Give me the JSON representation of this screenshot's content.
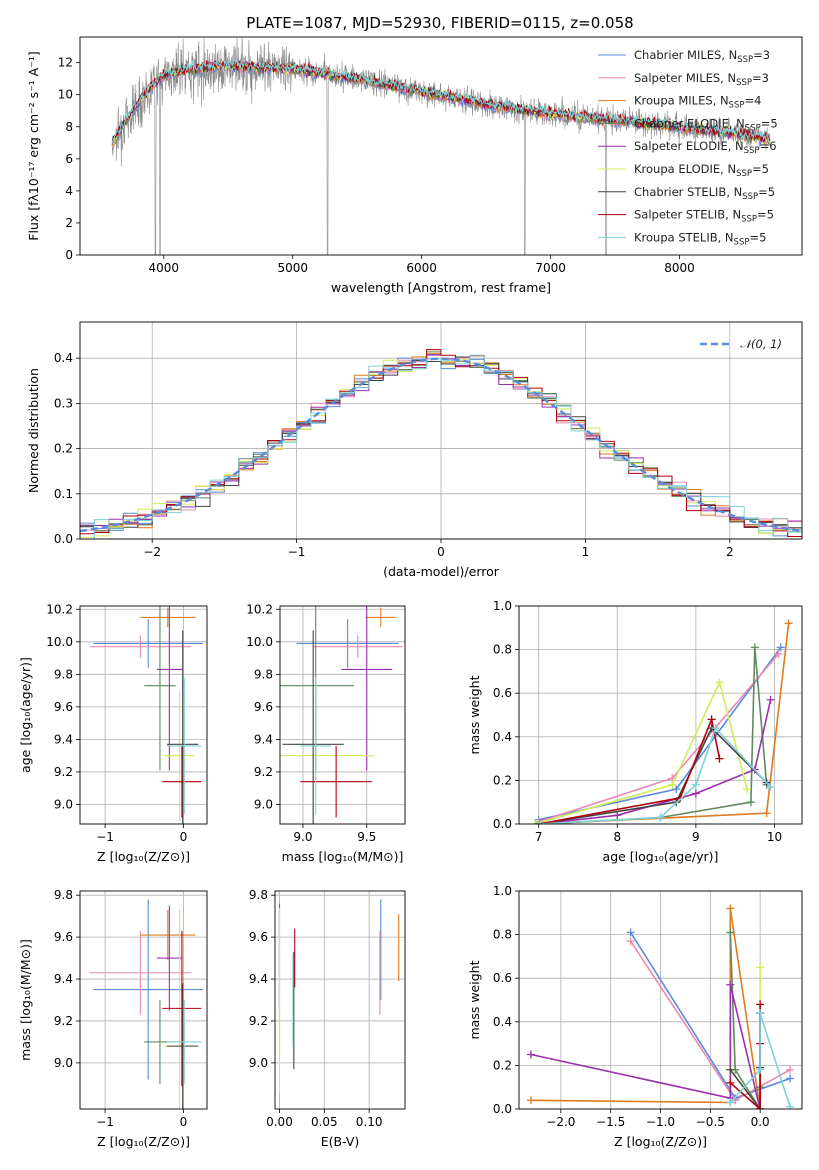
{
  "colors": {
    "chabrier_miles": "#5b8bd9",
    "salpeter_miles": "#e888b5",
    "kroupa_miles": "#e07a1f",
    "chabrier_elodie": "#5e8a5e",
    "salpeter_elodie": "#9b30b0",
    "kroupa_elodie": "#cfee5a",
    "chabrier_stelib": "#444444",
    "salpeter_stelib": "#b00010",
    "kroupa_stelib": "#7fd2d8",
    "data_spectrum": "#8a8a8a",
    "normal_curve": "#5b8bd9"
  },
  "chart_data": [
    {
      "id": "spectrum",
      "type": "line",
      "title": "PLATE=1087, MJD=52930, FIBERID=0115, z=0.058",
      "xlabel": "wavelength [Angstrom, rest frame]",
      "ylabel": "Flux [fλ10⁻¹⁷ erg cm⁻² s⁻¹ A⁻¹]",
      "xlim": [
        3350,
        8950
      ],
      "ylim": [
        0,
        13.6
      ],
      "xticks": [
        4000,
        5000,
        6000,
        7000,
        8000
      ],
      "yticks": [
        0,
        2,
        4,
        6,
        8,
        10,
        12
      ],
      "grid": false,
      "legend_position": "top-right",
      "continuum": {
        "x": [
          3600,
          3700,
          3800,
          3900,
          4000,
          4200,
          4500,
          5000,
          5500,
          6000,
          6500,
          7000,
          7500,
          8000,
          8500,
          8700
        ],
        "y": [
          7.0,
          8.3,
          9.5,
          10.5,
          11.2,
          11.6,
          11.8,
          11.6,
          11.0,
          10.2,
          9.4,
          8.8,
          8.4,
          8.0,
          7.5,
          7.2
        ]
      },
      "legend": [
        {
          "label": "Chabrier MILES, N",
          "sub": "SSP",
          "suffix": "=3",
          "color_key": "chabrier_miles"
        },
        {
          "label": "Salpeter MILES, N",
          "sub": "SSP",
          "suffix": "=3",
          "color_key": "salpeter_miles"
        },
        {
          "label": "Kroupa MILES, N",
          "sub": "SSP",
          "suffix": "=4",
          "color_key": "kroupa_miles"
        },
        {
          "label": "Chabrier ELODIE, N",
          "sub": "SSP",
          "suffix": "=5",
          "color_key": "chabrier_elodie"
        },
        {
          "label": "Salpeter ELODIE, N",
          "sub": "SSP",
          "suffix": "=6",
          "color_key": "salpeter_elodie"
        },
        {
          "label": "Kroupa ELODIE, N",
          "sub": "SSP",
          "suffix": "=5",
          "color_key": "kroupa_elodie"
        },
        {
          "label": "Chabrier STELIB, N",
          "sub": "SSP",
          "suffix": "=5",
          "color_key": "chabrier_stelib"
        },
        {
          "label": "Salpeter STELIB, N",
          "sub": "SSP",
          "suffix": "=5",
          "color_key": "salpeter_stelib"
        },
        {
          "label": "Kroupa STELIB, N",
          "sub": "SSP",
          "suffix": "=5",
          "color_key": "kroupa_stelib"
        }
      ]
    },
    {
      "id": "residuals",
      "type": "histogram",
      "xlabel": "(data-model)/error",
      "ylabel": "Normed distribution",
      "xlim": [
        -2.5,
        2.5
      ],
      "ylim": [
        0,
        0.48
      ],
      "xticks": [
        -2,
        -1,
        0,
        1,
        2
      ],
      "yticks": [
        0.0,
        0.1,
        0.2,
        0.3,
        0.4
      ],
      "grid": true,
      "legend_position": "top-right",
      "legend": [
        {
          "label": "𝒩(0, 1)",
          "color_key": "normal_curve",
          "style": "dashed"
        }
      ],
      "bin_width": 0.1
    },
    {
      "id": "age_vs_Z",
      "type": "errorbar",
      "xlabel": "Z [log₁₀(Z/Z⊙)]",
      "ylabel": "age  [log₁₀(age/yr)]",
      "xlim": [
        -1.32,
        0.3
      ],
      "ylim": [
        8.88,
        10.22
      ],
      "xticks": [
        -1,
        0
      ],
      "yticks": [
        9.0,
        9.2,
        9.4,
        9.6,
        9.8,
        10.0,
        10.2
      ],
      "grid": true,
      "points": [
        {
          "color_key": "chabrier_miles",
          "x": -0.45,
          "xerr": 0.7,
          "y": 9.99,
          "yerr": 0.15
        },
        {
          "color_key": "salpeter_miles",
          "x": -0.55,
          "xerr": 0.65,
          "y": 9.97,
          "yerr": 0.07
        },
        {
          "color_key": "kroupa_miles",
          "x": -0.2,
          "xerr": 0.35,
          "y": 10.15,
          "yerr": 0.06
        },
        {
          "color_key": "chabrier_elodie",
          "x": -0.3,
          "xerr": 0.2,
          "y": 9.73,
          "yerr": 0.52
        },
        {
          "color_key": "salpeter_elodie",
          "x": -0.18,
          "xerr": 0.16,
          "y": 9.83,
          "yerr": 0.62
        },
        {
          "color_key": "kroupa_elodie",
          "x": -0.05,
          "xerr": 0.2,
          "y": 9.3,
          "yerr": 0.4
        },
        {
          "color_key": "chabrier_stelib",
          "x": -0.01,
          "xerr": 0.2,
          "y": 9.37,
          "yerr": 0.7
        },
        {
          "color_key": "salpeter_stelib",
          "x": -0.02,
          "xerr": 0.25,
          "y": 9.14,
          "yerr": 0.22
        },
        {
          "color_key": "kroupa_stelib",
          "x": 0.01,
          "xerr": 0.22,
          "y": 9.36,
          "yerr": 0.42
        }
      ]
    },
    {
      "id": "age_vs_mass",
      "type": "errorbar",
      "xlabel": "mass [log₁₀(M/M⊙)]",
      "ylabel": "",
      "xlim": [
        8.82,
        9.8
      ],
      "ylim": [
        8.88,
        10.22
      ],
      "xticks": [
        9.0,
        9.5
      ],
      "yticks": [
        9.0,
        9.2,
        9.4,
        9.6,
        9.8,
        10.0,
        10.2
      ],
      "grid": true,
      "points": [
        {
          "color_key": "chabrier_miles",
          "x": 9.35,
          "xerr": 0.4,
          "y": 9.99,
          "yerr": 0.15
        },
        {
          "color_key": "salpeter_miles",
          "x": 9.43,
          "xerr": 0.35,
          "y": 9.97,
          "yerr": 0.07
        },
        {
          "color_key": "kroupa_miles",
          "x": 9.61,
          "xerr": 0.12,
          "y": 10.15,
          "yerr": 0.06
        },
        {
          "color_key": "chabrier_elodie",
          "x": 9.1,
          "xerr": 0.3,
          "y": 9.73,
          "yerr": 0.52
        },
        {
          "color_key": "salpeter_elodie",
          "x": 9.5,
          "xerr": 0.2,
          "y": 9.83,
          "yerr": 0.62
        },
        {
          "color_key": "kroupa_elodie",
          "x": 9.08,
          "xerr": 0.48,
          "y": 9.3,
          "yerr": 0.4
        },
        {
          "color_key": "chabrier_stelib",
          "x": 9.08,
          "xerr": 0.24,
          "y": 9.37,
          "yerr": 0.7
        },
        {
          "color_key": "salpeter_stelib",
          "x": 9.26,
          "xerr": 0.28,
          "y": 9.14,
          "yerr": 0.22
        },
        {
          "color_key": "kroupa_stelib",
          "x": 9.1,
          "xerr": 0.12,
          "y": 9.36,
          "yerr": 0.42
        }
      ]
    },
    {
      "id": "mass_weight_vs_age",
      "type": "line",
      "xlabel": "age  [log₁₀(age/yr)]",
      "ylabel": "mass weight",
      "xlim": [
        6.75,
        10.35
      ],
      "ylim": [
        0,
        1.0
      ],
      "xticks": [
        7,
        8,
        9,
        10
      ],
      "yticks": [
        0.0,
        0.2,
        0.4,
        0.6,
        0.8,
        1.0
      ],
      "grid": true,
      "series": [
        {
          "color_key": "chabrier_miles",
          "x": [
            7.0,
            8.75,
            10.08
          ],
          "y": [
            0.02,
            0.16,
            0.81
          ]
        },
        {
          "color_key": "salpeter_miles",
          "x": [
            7.0,
            8.7,
            10.05
          ],
          "y": [
            0.01,
            0.21,
            0.78
          ]
        },
        {
          "color_key": "kroupa_miles",
          "x": [
            7.0,
            9.9,
            10.18
          ],
          "y": [
            0.0,
            0.05,
            0.92
          ]
        },
        {
          "color_key": "chabrier_elodie",
          "x": [
            7.0,
            8.55,
            9.7,
            9.75,
            9.9
          ],
          "y": [
            0.0,
            0.03,
            0.1,
            0.81,
            0.18
          ]
        },
        {
          "color_key": "salpeter_elodie",
          "x": [
            7.0,
            8.0,
            9.0,
            9.75,
            9.95
          ],
          "y": [
            0.0,
            0.04,
            0.14,
            0.25,
            0.57
          ]
        },
        {
          "color_key": "kroupa_elodie",
          "x": [
            6.95,
            8.7,
            9.3,
            9.65
          ],
          "y": [
            0.0,
            0.18,
            0.65,
            0.16
          ]
        },
        {
          "color_key": "chabrier_stelib",
          "x": [
            7.0,
            8.75,
            9.2,
            9.9
          ],
          "y": [
            0.0,
            0.1,
            0.44,
            0.19
          ]
        },
        {
          "color_key": "salpeter_stelib",
          "x": [
            7.0,
            8.8,
            9.2,
            9.3
          ],
          "y": [
            0.0,
            0.12,
            0.48,
            0.3
          ]
        },
        {
          "color_key": "kroupa_stelib",
          "x": [
            7.0,
            8.55,
            9.0,
            9.25,
            9.95
          ],
          "y": [
            0.0,
            0.03,
            0.18,
            0.44,
            0.17
          ]
        }
      ]
    },
    {
      "id": "mass_vs_Z",
      "type": "errorbar",
      "xlabel": "Z [log₁₀(Z/Z⊙)]",
      "ylabel": "mass [log₁₀(M/M⊙)]",
      "xlim": [
        -1.32,
        0.3
      ],
      "ylim": [
        8.78,
        9.82
      ],
      "xticks": [
        -1,
        0
      ],
      "yticks": [
        9.0,
        9.2,
        9.4,
        9.6,
        9.8
      ],
      "grid": true,
      "points": [
        {
          "color_key": "chabrier_miles",
          "x": -0.45,
          "xerr": 0.7,
          "y": 9.35,
          "yerr": 0.43
        },
        {
          "color_key": "salpeter_miles",
          "x": -0.55,
          "xerr": 0.65,
          "y": 9.43,
          "yerr": 0.2
        },
        {
          "color_key": "kroupa_miles",
          "x": -0.2,
          "xerr": 0.35,
          "y": 9.61,
          "yerr": 0.12
        },
        {
          "color_key": "chabrier_elodie",
          "x": -0.3,
          "xerr": 0.2,
          "y": 9.1,
          "yerr": 0.2
        },
        {
          "color_key": "salpeter_elodie",
          "x": -0.18,
          "xerr": 0.16,
          "y": 9.5,
          "yerr": 0.25
        },
        {
          "color_key": "kroupa_elodie",
          "x": -0.05,
          "xerr": 0.2,
          "y": 9.08,
          "yerr": 0.65
        },
        {
          "color_key": "chabrier_stelib",
          "x": -0.01,
          "xerr": 0.2,
          "y": 9.08,
          "yerr": 0.3
        },
        {
          "color_key": "salpeter_stelib",
          "x": -0.02,
          "xerr": 0.25,
          "y": 9.26,
          "yerr": 0.37
        },
        {
          "color_key": "kroupa_stelib",
          "x": 0.01,
          "xerr": 0.22,
          "y": 9.1,
          "yerr": 0.2
        }
      ]
    },
    {
      "id": "mass_vs_ebv",
      "type": "errorbar",
      "xlabel": "E(B-V)",
      "ylabel": "",
      "xlim": [
        -0.005,
        0.14
      ],
      "ylim": [
        8.78,
        9.82
      ],
      "xticks": [
        0.0,
        0.05,
        0.1
      ],
      "tick_labels": [
        "0.00",
        "0.05",
        "0.10"
      ],
      "yticks": [
        9.0,
        9.2,
        9.4,
        9.6,
        9.8
      ],
      "grid": true,
      "points": [
        {
          "color_key": "chabrier_miles",
          "x": 0.113,
          "xerr": 0,
          "y": 9.54,
          "yerr": 0.24
        },
        {
          "color_key": "salpeter_miles",
          "x": 0.112,
          "xerr": 0,
          "y": 9.43,
          "yerr": 0.2
        },
        {
          "color_key": "kroupa_miles",
          "x": 0.133,
          "xerr": 0,
          "y": 9.55,
          "yerr": 0.16
        },
        {
          "color_key": "chabrier_elodie",
          "x": 0.0,
          "xerr": 0,
          "y": 9.4,
          "yerr": 0.36
        },
        {
          "color_key": "salpeter_elodie",
          "x": 0.0,
          "xerr": 0,
          "y": 9.5,
          "yerr": 0.25
        },
        {
          "color_key": "kroupa_elodie",
          "x": 0.0,
          "xerr": 0,
          "y": 9.3,
          "yerr": 0.44
        },
        {
          "color_key": "chabrier_stelib",
          "x": 0.016,
          "xerr": 0,
          "y": 9.25,
          "yerr": 0.28
        },
        {
          "color_key": "salpeter_stelib",
          "x": 0.017,
          "xerr": 0,
          "y": 9.5,
          "yerr": 0.14
        },
        {
          "color_key": "kroupa_stelib",
          "x": 0.015,
          "xerr": 0,
          "y": 9.3,
          "yerr": 0.22
        }
      ]
    },
    {
      "id": "mass_weight_vs_Z",
      "type": "line",
      "xlabel": "Z [log₁₀(Z/Z⊙)]",
      "ylabel": "mass weight",
      "xlim": [
        -2.42,
        0.42
      ],
      "ylim": [
        0,
        1.0
      ],
      "xticks": [
        -2.0,
        -1.5,
        -1.0,
        -0.5,
        0.0
      ],
      "tick_labels": [
        "−2.0",
        "−1.5",
        "−1.0",
        "−0.5",
        "0.0"
      ],
      "yticks": [
        0.0,
        0.2,
        0.4,
        0.6,
        0.8,
        1.0
      ],
      "grid": true,
      "series": [
        {
          "color_key": "chabrier_miles",
          "x": [
            -1.3,
            -0.25,
            0.3
          ],
          "y": [
            0.81,
            0.05,
            0.14
          ]
        },
        {
          "color_key": "salpeter_miles",
          "x": [
            -1.3,
            -0.25,
            0.3
          ],
          "y": [
            0.77,
            0.04,
            0.18
          ]
        },
        {
          "color_key": "kroupa_miles",
          "x": [
            -2.3,
            -0.3,
            -0.3,
            0.0
          ],
          "y": [
            0.04,
            0.03,
            0.92,
            0.0
          ]
        },
        {
          "color_key": "chabrier_elodie",
          "x": [
            -0.3,
            -0.25,
            0.0,
            0.0
          ],
          "y": [
            0.81,
            0.18,
            0.0,
            0.1
          ]
        },
        {
          "color_key": "salpeter_elodie",
          "x": [
            -2.3,
            -0.3,
            -0.3,
            0.0
          ],
          "y": [
            0.25,
            0.05,
            0.57,
            0.0
          ]
        },
        {
          "color_key": "kroupa_elodie",
          "x": [
            -0.3,
            0.0,
            0.0
          ],
          "y": [
            0.18,
            0.0,
            0.65
          ]
        },
        {
          "color_key": "chabrier_stelib",
          "x": [
            -0.3,
            0.0,
            0.0,
            0.0
          ],
          "y": [
            0.18,
            0.0,
            0.19,
            0.44
          ]
        },
        {
          "color_key": "salpeter_stelib",
          "x": [
            -0.3,
            0.0,
            0.0,
            0.0
          ],
          "y": [
            0.12,
            0.0,
            0.3,
            0.48
          ]
        },
        {
          "color_key": "kroupa_stelib",
          "x": [
            -0.3,
            0.0,
            0.0,
            0.3
          ],
          "y": [
            0.03,
            0.18,
            0.44,
            0.01
          ]
        }
      ]
    }
  ]
}
